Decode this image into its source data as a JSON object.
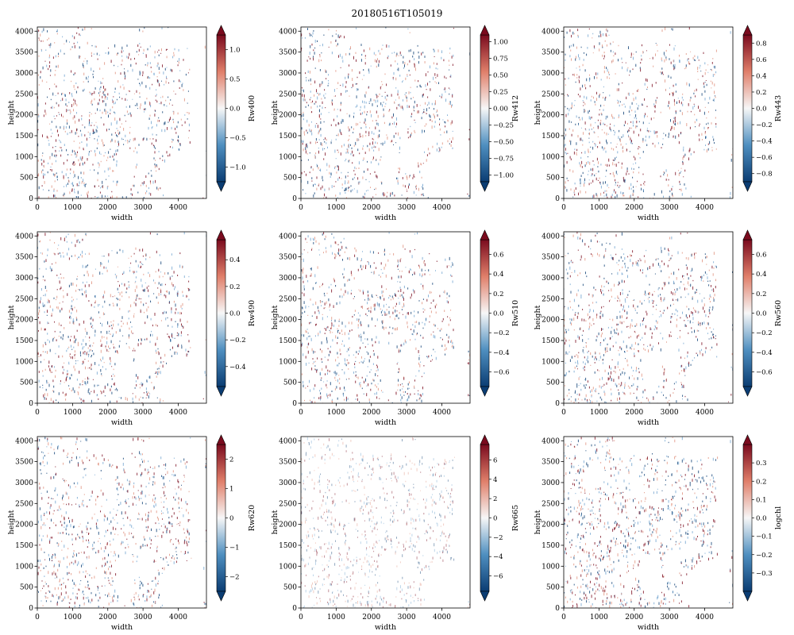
{
  "figure": {
    "suptitle": "20180516T105019",
    "colors": {
      "low": "#0b3d73",
      "mid": "#f7f7f7",
      "high": "#7a0b1e",
      "axis": "#000000"
    }
  },
  "chart_data": [
    {
      "type": "heatmap",
      "variable": "Rw400",
      "cbar_label": "Rw400",
      "xlabel": "width",
      "ylabel": "height",
      "xlim": [
        0,
        4800
      ],
      "ylim": [
        0,
        4100
      ],
      "xticks": [
        0,
        1000,
        2000,
        3000,
        4000
      ],
      "yticks": [
        0,
        500,
        1000,
        1500,
        2000,
        2500,
        3000,
        3500,
        4000
      ],
      "cbar_range": [
        -1.25,
        1.25
      ],
      "cbar_ticks": [
        "−1.0",
        "−0.5",
        "0.0",
        "0.5",
        "1.0"
      ],
      "cbar_tick_values": [
        -1.0,
        -0.5,
        0.0,
        0.5,
        1.0
      ],
      "cmap": "RdBu_r",
      "extend": "both"
    },
    {
      "type": "heatmap",
      "variable": "Rw412",
      "cbar_label": "Rw412",
      "xlabel": "width",
      "ylabel": "height",
      "xlim": [
        0,
        4800
      ],
      "ylim": [
        0,
        4100
      ],
      "xticks": [
        0,
        1000,
        2000,
        3000,
        4000
      ],
      "yticks": [
        0,
        500,
        1000,
        1500,
        2000,
        2500,
        3000,
        3500,
        4000
      ],
      "cbar_range": [
        -1.1,
        1.1
      ],
      "cbar_ticks": [
        "−1.00",
        "−0.75",
        "−0.50",
        "−0.25",
        "0.00",
        "0.25",
        "0.50",
        "0.75",
        "1.00"
      ],
      "cbar_tick_values": [
        -1.0,
        -0.75,
        -0.5,
        -0.25,
        0.0,
        0.25,
        0.5,
        0.75,
        1.0
      ],
      "cmap": "RdBu_r",
      "extend": "both"
    },
    {
      "type": "heatmap",
      "variable": "Rw443",
      "cbar_label": "Rw443",
      "xlabel": "width",
      "ylabel": "height",
      "xlim": [
        0,
        4800
      ],
      "ylim": [
        0,
        4100
      ],
      "xticks": [
        0,
        1000,
        2000,
        3000,
        4000
      ],
      "yticks": [
        0,
        500,
        1000,
        1500,
        2000,
        2500,
        3000,
        3500,
        4000
      ],
      "cbar_range": [
        -0.9,
        0.9
      ],
      "cbar_ticks": [
        "−0.8",
        "−0.6",
        "−0.4",
        "−0.2",
        "0.0",
        "0.2",
        "0.4",
        "0.6",
        "0.8"
      ],
      "cbar_tick_values": [
        -0.8,
        -0.6,
        -0.4,
        -0.2,
        0.0,
        0.2,
        0.4,
        0.6,
        0.8
      ],
      "cmap": "RdBu_r",
      "extend": "both"
    },
    {
      "type": "heatmap",
      "variable": "Rw490",
      "cbar_label": "Rw490",
      "xlabel": "width",
      "ylabel": "height",
      "xlim": [
        0,
        4800
      ],
      "ylim": [
        0,
        4100
      ],
      "xticks": [
        0,
        1000,
        2000,
        3000,
        4000
      ],
      "yticks": [
        0,
        500,
        1000,
        1500,
        2000,
        2500,
        3000,
        3500,
        4000
      ],
      "cbar_range": [
        -0.55,
        0.55
      ],
      "cbar_ticks": [
        "−0.4",
        "−0.2",
        "0.0",
        "0.2",
        "0.4"
      ],
      "cbar_tick_values": [
        -0.4,
        -0.2,
        0.0,
        0.2,
        0.4
      ],
      "cmap": "RdBu_r",
      "extend": "both"
    },
    {
      "type": "heatmap",
      "variable": "Rw510",
      "cbar_label": "Rw510",
      "xlabel": "width",
      "ylabel": "height",
      "xlim": [
        0,
        4800
      ],
      "ylim": [
        0,
        4100
      ],
      "xticks": [
        0,
        1000,
        2000,
        3000,
        4000
      ],
      "yticks": [
        0,
        500,
        1000,
        1500,
        2000,
        2500,
        3000,
        3500,
        4000
      ],
      "cbar_range": [
        -0.75,
        0.75
      ],
      "cbar_ticks": [
        "−0.6",
        "−0.4",
        "−0.2",
        "0.0",
        "0.2",
        "0.4",
        "0.6"
      ],
      "cbar_tick_values": [
        -0.6,
        -0.4,
        -0.2,
        0.0,
        0.2,
        0.4,
        0.6
      ],
      "cmap": "RdBu_r",
      "extend": "both"
    },
    {
      "type": "heatmap",
      "variable": "Rw560",
      "cbar_label": "Rw560",
      "xlabel": "width",
      "ylabel": "height",
      "xlim": [
        0,
        4800
      ],
      "ylim": [
        0,
        4100
      ],
      "xticks": [
        0,
        1000,
        2000,
        3000,
        4000
      ],
      "yticks": [
        0,
        500,
        1000,
        1500,
        2000,
        2500,
        3000,
        3500,
        4000
      ],
      "cbar_range": [
        -0.75,
        0.75
      ],
      "cbar_ticks": [
        "−0.6",
        "−0.4",
        "−0.2",
        "0.0",
        "0.2",
        "0.4",
        "0.6"
      ],
      "cbar_tick_values": [
        -0.6,
        -0.4,
        -0.2,
        0.0,
        0.2,
        0.4,
        0.6
      ],
      "cmap": "RdBu_r",
      "extend": "both"
    },
    {
      "type": "heatmap",
      "variable": "Rw620",
      "cbar_label": "Rw620",
      "xlabel": "width",
      "ylabel": "height",
      "xlim": [
        0,
        4800
      ],
      "ylim": [
        0,
        4100
      ],
      "xticks": [
        0,
        1000,
        2000,
        3000,
        4000
      ],
      "yticks": [
        0,
        500,
        1000,
        1500,
        2000,
        2500,
        3000,
        3500,
        4000
      ],
      "cbar_range": [
        -2.5,
        2.5
      ],
      "cbar_ticks": [
        "−2",
        "−1",
        "0",
        "1",
        "2"
      ],
      "cbar_tick_values": [
        -2,
        -1,
        0,
        1,
        2
      ],
      "cmap": "RdBu_r",
      "extend": "both"
    },
    {
      "type": "heatmap",
      "variable": "Rw665",
      "cbar_label": "Rw665",
      "xlabel": "width",
      "ylabel": "height",
      "xlim": [
        0,
        4800
      ],
      "ylim": [
        0,
        4100
      ],
      "xticks": [
        0,
        1000,
        2000,
        3000,
        4000
      ],
      "yticks": [
        0,
        500,
        1000,
        1500,
        2000,
        2500,
        3000,
        3500,
        4000
      ],
      "cbar_range": [
        -7.6,
        7.6
      ],
      "cbar_ticks": [
        "−6",
        "−4",
        "−2",
        "0",
        "2",
        "4",
        "6"
      ],
      "cbar_tick_values": [
        -6,
        -4,
        -2,
        0,
        2,
        4,
        6
      ],
      "cmap": "RdBu_r",
      "extend": "both"
    },
    {
      "type": "heatmap",
      "variable": "logchl",
      "cbar_label": "logchl",
      "xlabel": "width",
      "ylabel": "height",
      "xlim": [
        0,
        4800
      ],
      "ylim": [
        0,
        4100
      ],
      "xticks": [
        0,
        1000,
        2000,
        3000,
        4000
      ],
      "yticks": [
        0,
        500,
        1000,
        1500,
        2000,
        2500,
        3000,
        3500,
        4000
      ],
      "cbar_range": [
        -0.4,
        0.4
      ],
      "cbar_ticks": [
        "−0.3",
        "−0.2",
        "−0.1",
        "0.0",
        "0.1",
        "0.2",
        "0.3"
      ],
      "cbar_tick_values": [
        -0.3,
        -0.2,
        -0.1,
        0.0,
        0.1,
        0.2,
        0.3
      ],
      "cmap": "RdBu_r",
      "extend": "both"
    }
  ]
}
